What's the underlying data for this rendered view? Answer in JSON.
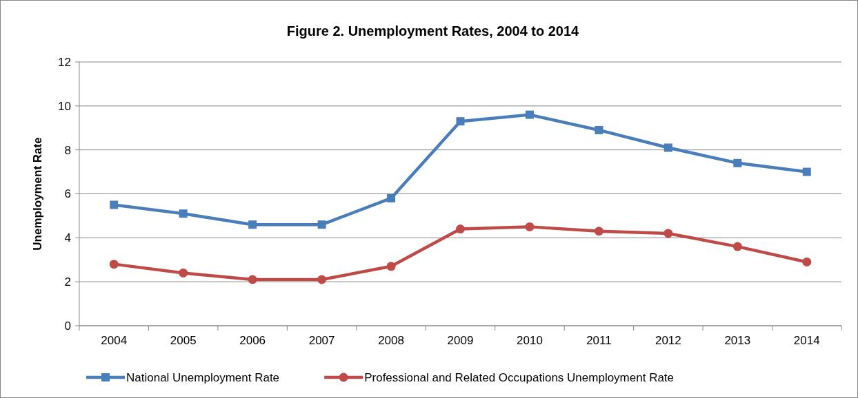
{
  "chart_data": {
    "type": "line",
    "title": "Figure 2. Unemployment Rates, 2004 to 2014",
    "ylabel": "Unemployment Rate",
    "categories": [
      "2004",
      "2005",
      "2006",
      "2007",
      "2008",
      "2009",
      "2010",
      "2011",
      "2012",
      "2013",
      "2014"
    ],
    "series": [
      {
        "name": "National Unemployment Rate",
        "color": "#4a7ebb",
        "marker": "square",
        "values": [
          5.5,
          5.1,
          4.6,
          4.6,
          5.8,
          9.3,
          9.6,
          8.9,
          8.1,
          7.4,
          7.0
        ]
      },
      {
        "name": "Professional and Related Occupations Unemployment Rate",
        "color": "#be4b48",
        "marker": "circle",
        "values": [
          2.8,
          2.4,
          2.1,
          2.1,
          2.7,
          4.4,
          4.5,
          4.3,
          4.2,
          3.6,
          2.9
        ]
      }
    ],
    "ylim": [
      0,
      12
    ],
    "yticks": [
      0,
      2,
      4,
      6,
      8,
      10,
      12
    ],
    "grid": "y",
    "legend": "bottom",
    "line_style": "solid"
  }
}
